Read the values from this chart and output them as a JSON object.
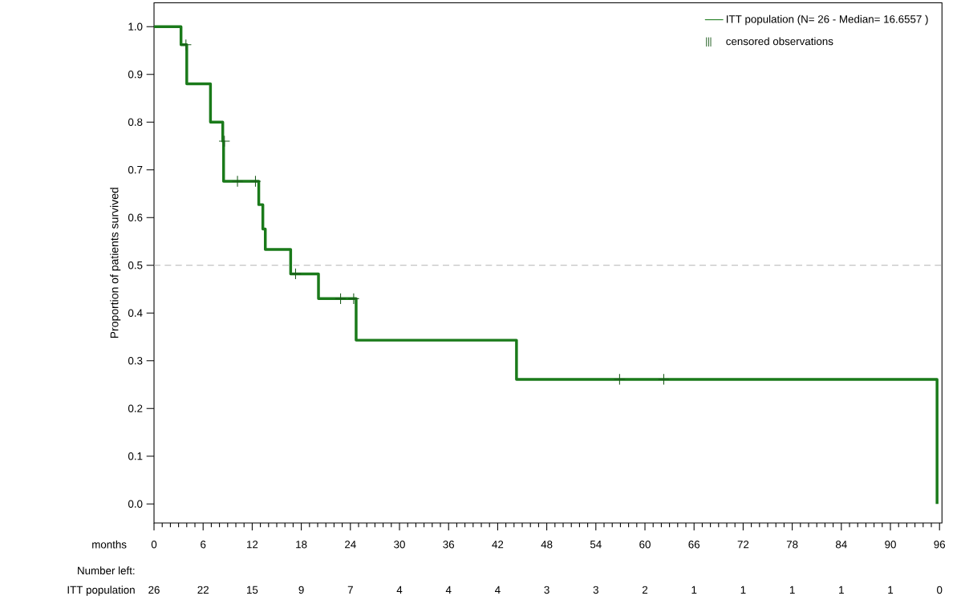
{
  "chart_data": {
    "type": "step",
    "ylabel": "Proportion of patients survived",
    "xlabel": "months",
    "series": [
      {
        "name": "ITT population  (N= 26 - Median= 16.6557 )",
        "color": "#1a7a1a",
        "x": [
          0,
          3.3,
          4.0,
          6.9,
          8.4,
          8.5,
          12.8,
          13.3,
          13.6,
          16.7,
          20.1,
          24.7,
          44.3,
          95.7
        ],
        "values": [
          1.0,
          0.962,
          0.88,
          0.8,
          0.76,
          0.676,
          0.627,
          0.576,
          0.533,
          0.482,
          0.43,
          0.343,
          0.261,
          0.0
        ]
      },
      {
        "name": "censored observations",
        "type": "scatter",
        "marker": "cross",
        "color": "#1a5a1a",
        "x": [
          3.9,
          8.6,
          10.2,
          12.4,
          17.3,
          22.8,
          24.4,
          56.9,
          62.3
        ],
        "values": [
          0.962,
          0.76,
          0.676,
          0.676,
          0.482,
          0.43,
          0.43,
          0.261,
          0.261
        ]
      }
    ],
    "ref_lines": [
      {
        "axis": "y",
        "value": 0.5,
        "color": "#b4b4b4",
        "line_style": "dashed"
      }
    ],
    "xlim": [
      0,
      96.3
    ],
    "ylim": [
      -0.04,
      1.05
    ],
    "xticks": [
      0,
      6,
      12,
      18,
      24,
      30,
      36,
      42,
      48,
      54,
      60,
      66,
      72,
      78,
      84,
      90,
      96
    ],
    "yticks": [
      {
        "value": 0,
        "label": "0.0"
      },
      0.1,
      0.2,
      0.3,
      0.4,
      0.5,
      0.6,
      0.7,
      0.8,
      0.9,
      {
        "value": 1,
        "label": "1.0"
      }
    ],
    "grid": false,
    "legend": "top right",
    "annotations": [
      "Number left:",
      "ITT population",
      "26",
      "22",
      "15",
      "9",
      "7",
      "4",
      "4",
      "4",
      "3",
      "3",
      "2",
      "1",
      "1",
      "1",
      "1",
      "1",
      "0"
    ]
  }
}
